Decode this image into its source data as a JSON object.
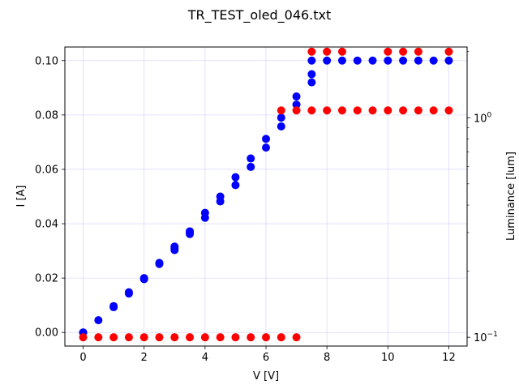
{
  "chart_data": {
    "type": "scatter",
    "title": "TR_TEST_oled_046.txt",
    "xlabel": "V [V]",
    "ylabel_left": "I [A]",
    "ylabel_right": "Luminance [lum]",
    "xlim": [
      -0.6,
      12.6
    ],
    "ylim_left": [
      -0.005,
      0.105
    ],
    "ylim_right_log": [
      0.0912,
      2.1
    ],
    "right_axis_scale": "log",
    "grid": true,
    "colors": {
      "current": "#0000ff",
      "luminance": "#ff0000",
      "grid": "#b0b0ff",
      "left_label": "#0000ff",
      "right_label": "#ff0000"
    },
    "x_ticks": [
      0,
      2,
      4,
      6,
      8,
      10,
      12
    ],
    "x_tick_labels": [
      "0",
      "2",
      "4",
      "6",
      "8",
      "10",
      "12"
    ],
    "y_left_ticks": [
      0.0,
      0.02,
      0.04,
      0.06,
      0.08,
      0.1
    ],
    "y_left_tick_labels": [
      "0.00",
      "0.02",
      "0.04",
      "0.06",
      "0.08",
      "0.10"
    ],
    "y_right_major_ticks": [
      0.1,
      1
    ],
    "y_right_major_labels": [
      "10",
      "10"
    ],
    "y_right_major_exponents": [
      "−1",
      "0"
    ],
    "y_right_minor_ticks": [
      0.2,
      0.3,
      0.4,
      0.5,
      0.6,
      0.7,
      0.8,
      0.9,
      2
    ],
    "series": [
      {
        "axis": "left",
        "x": [
          0,
          0,
          0.5,
          1,
          1,
          1.5,
          1.5,
          2,
          2,
          2.5,
          2.5,
          3,
          3,
          3,
          3.5,
          3.5,
          3.5,
          4,
          4,
          4.5,
          4.5,
          5,
          5,
          5.5,
          5.5,
          6,
          6,
          6.5,
          6.5,
          7,
          7,
          7.5,
          7.5,
          7.5,
          8,
          8.5,
          9,
          9.5,
          10,
          10.5,
          11,
          11.5,
          12
        ],
        "y": [
          0,
          0,
          0.0045,
          0.0093,
          0.0097,
          0.0143,
          0.0148,
          0.0196,
          0.02,
          0.0252,
          0.0256,
          0.0303,
          0.031,
          0.0316,
          0.0362,
          0.0368,
          0.0372,
          0.0422,
          0.044,
          0.0482,
          0.05,
          0.0542,
          0.0571,
          0.0609,
          0.064,
          0.068,
          0.0712,
          0.0758,
          0.079,
          0.0838,
          0.0868,
          0.092,
          0.095,
          0.1,
          0.1,
          0.1,
          0.1,
          0.1,
          0.1,
          0.1,
          0.1,
          0.1,
          0.1
        ]
      },
      {
        "axis": "right",
        "x": [
          0,
          0.5,
          1,
          1.5,
          2,
          2.5,
          3,
          3.5,
          4,
          4.5,
          5,
          5.5,
          6,
          6.5,
          7,
          6.5,
          7,
          7.5,
          8,
          8.5,
          9,
          9.5,
          10,
          10.5,
          11,
          11.5,
          12,
          7.5,
          8,
          8.5,
          10,
          10.5,
          11,
          12
        ],
        "y": [
          0.1,
          0.1,
          0.1,
          0.1,
          0.1,
          0.1,
          0.1,
          0.1,
          0.1,
          0.1,
          0.1,
          0.1,
          0.1,
          0.1,
          0.1,
          1.08,
          1.08,
          1.08,
          1.08,
          1.08,
          1.08,
          1.08,
          1.08,
          1.08,
          1.08,
          1.08,
          1.08,
          2.0,
          2.0,
          2.0,
          2.0,
          2.0,
          2.0,
          2.0
        ]
      }
    ]
  }
}
